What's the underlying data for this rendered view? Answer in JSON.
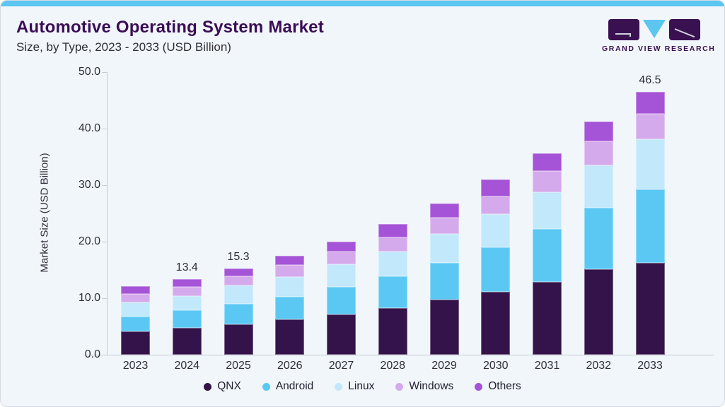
{
  "page": {
    "title": "Automotive Operating System Market",
    "subtitle": "Size, by Type, 2023 - 2033 (USD Billion)"
  },
  "brand": {
    "name": "GRAND VIEW RESEARCH",
    "logo_icons": [
      "logo-square-left",
      "logo-triangle-down",
      "logo-square-right"
    ]
  },
  "colors": {
    "accent_bar": "#5cc5f0",
    "title": "#3a0e55",
    "background": "#f1f6fb",
    "axis": "#c6ccd6",
    "text": "#2e2e38"
  },
  "chart_data": {
    "type": "bar",
    "stacked": true,
    "title": "Automotive Operating System Market Size, by Type, 2023 - 2033 (USD Billion)",
    "categories": [
      "2023",
      "2024",
      "2025",
      "2026",
      "2027",
      "2028",
      "2029",
      "2030",
      "2031",
      "2032",
      "2033"
    ],
    "series": [
      {
        "name": "QNX",
        "color": "#331349",
        "values": [
          4.1,
          4.8,
          5.4,
          6.2,
          7.1,
          8.2,
          9.7,
          11.1,
          12.9,
          15.1,
          16.3
        ]
      },
      {
        "name": "Android",
        "color": "#5bc8f4",
        "values": [
          2.7,
          3.1,
          3.6,
          4.1,
          4.9,
          5.7,
          6.5,
          7.9,
          9.4,
          10.9,
          13.0
        ]
      },
      {
        "name": "Linux",
        "color": "#c1e8fb",
        "values": [
          2.4,
          2.5,
          3.2,
          3.5,
          4.0,
          4.4,
          5.2,
          5.9,
          6.5,
          7.5,
          8.8
        ]
      },
      {
        "name": "Windows",
        "color": "#d4aaec",
        "values": [
          1.5,
          1.6,
          1.7,
          2.1,
          2.3,
          2.5,
          2.9,
          3.1,
          3.7,
          4.2,
          4.5
        ]
      },
      {
        "name": "Others",
        "color": "#a553d7",
        "values": [
          1.4,
          1.4,
          1.4,
          1.6,
          1.7,
          2.3,
          2.4,
          3.0,
          3.1,
          3.5,
          3.9
        ]
      }
    ],
    "totals": {
      "2023": 12.1,
      "2024": 13.4,
      "2025": 15.3,
      "2026": 17.5,
      "2027": 20.0,
      "2028": 23.1,
      "2029": 26.7,
      "2030": 31.0,
      "2031": 35.6,
      "2032": 41.2,
      "2033": 46.5
    },
    "total_labels": {
      "2024": "13.4",
      "2025": "15.3",
      "2033": "46.5"
    },
    "xlabel": "",
    "ylabel": "Market Size (USD Billion)",
    "ylim": [
      0,
      50
    ],
    "yticks": [
      "0.0",
      "10.0",
      "20.0",
      "30.0",
      "40.0",
      "50.0"
    ],
    "grid": false,
    "legend_position": "bottom",
    "legend": [
      "QNX",
      "Android",
      "Linux",
      "Windows",
      "Others"
    ]
  }
}
